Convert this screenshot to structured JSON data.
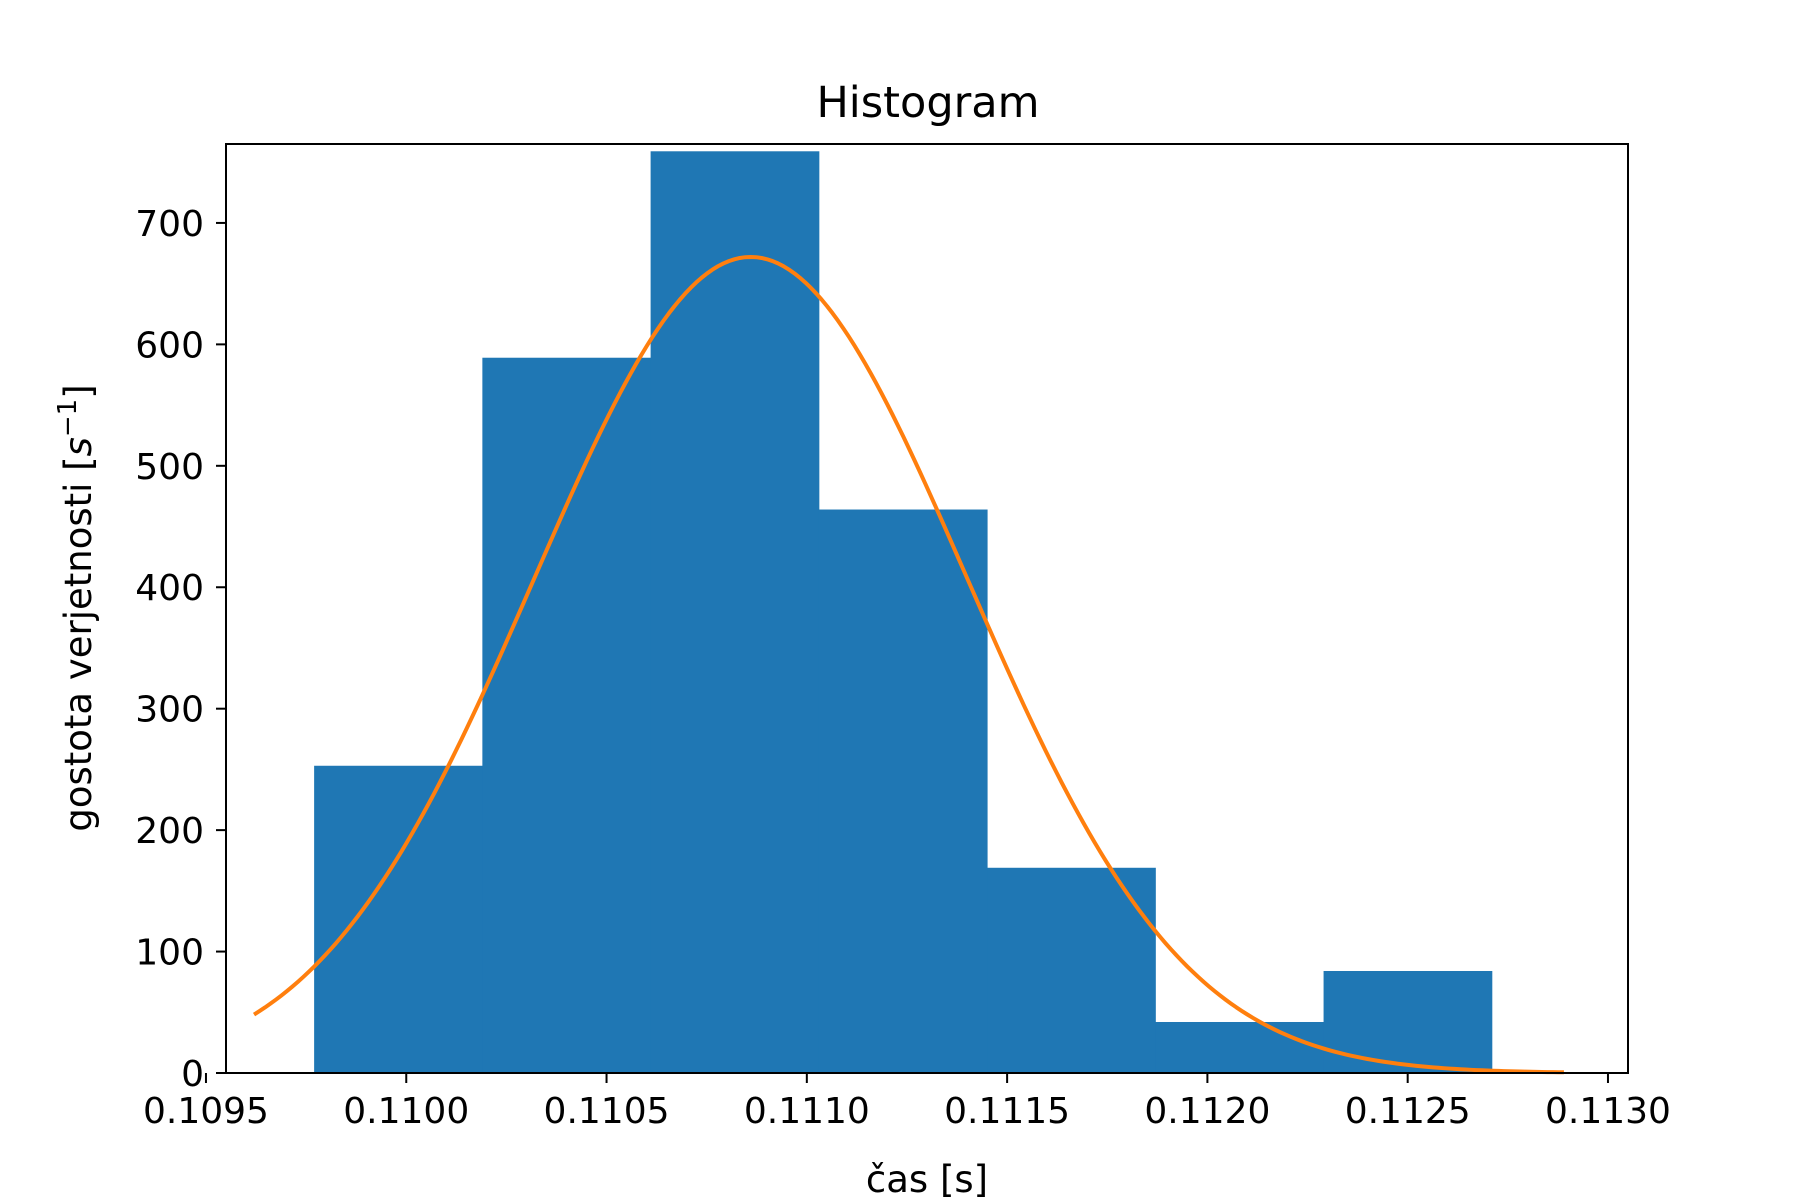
{
  "chart_data": {
    "type": "bar",
    "title": "Histogram",
    "xlabel": "čas [s]",
    "ylabel": "gostota verjetnosti",
    "ylabel_unit_base": "s",
    "ylabel_unit_exp": "−1",
    "xlim": [
      0.10955,
      0.11305
    ],
    "ylim": [
      0,
      765
    ],
    "xticks": [
      0.1095,
      0.11,
      0.1105,
      0.111,
      0.1115,
      0.112,
      0.1125,
      0.113
    ],
    "xtick_labels": [
      "0.1095",
      "0.1100",
      "0.1105",
      "0.1110",
      "0.1115",
      "0.1120",
      "0.1125",
      "0.1130"
    ],
    "yticks": [
      0,
      100,
      200,
      300,
      400,
      500,
      600,
      700
    ],
    "ytick_labels": [
      "0",
      "100",
      "200",
      "300",
      "400",
      "500",
      "600",
      "700"
    ],
    "grid": false,
    "series": [
      {
        "type": "bar",
        "color": "#1f77b4",
        "bin_edges": [
          0.10977,
          0.11019,
          0.11061,
          0.11103,
          0.11145,
          0.11187,
          0.11229,
          0.11271
        ],
        "values": [
          253,
          589,
          759,
          464,
          169,
          42,
          84
        ]
      },
      {
        "type": "line",
        "color": "#ff7f0e",
        "mean": 0.11086,
        "std": 0.00054,
        "peak": 672,
        "x_range": [
          0.10962,
          0.11289
        ]
      }
    ]
  }
}
